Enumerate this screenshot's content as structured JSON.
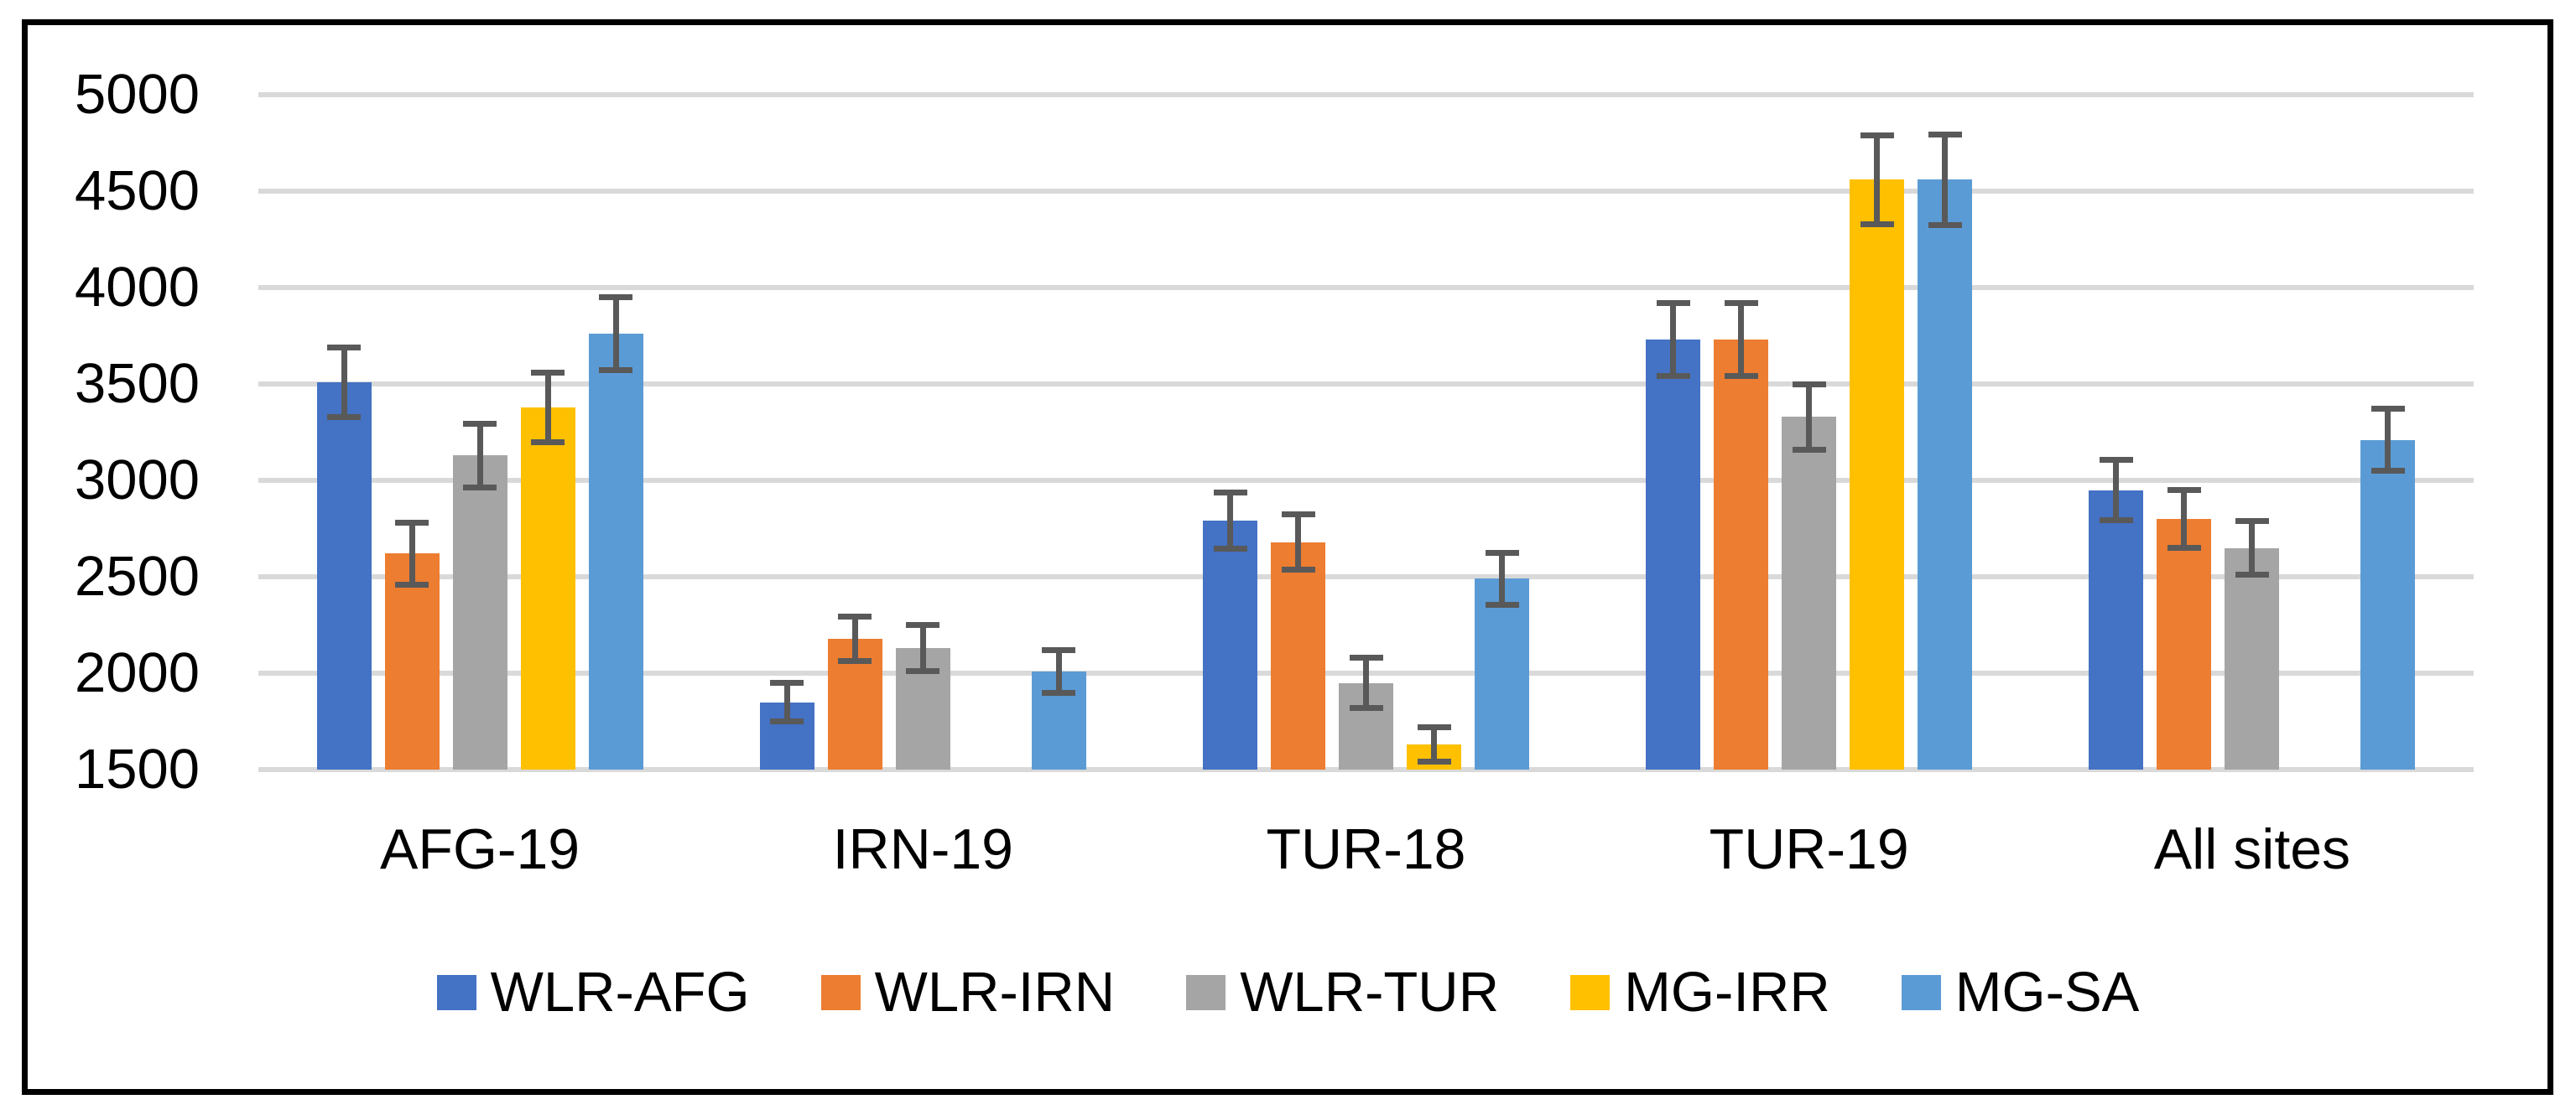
{
  "chart_data": {
    "type": "bar",
    "title": "",
    "xlabel": "",
    "ylabel": "",
    "categories": [
      "AFG-19",
      "IRN-19",
      "TUR-18",
      "TUR-19",
      "All sites"
    ],
    "series": [
      {
        "name": "WLR-AFG",
        "color": "#4472C4",
        "values": [
          3510,
          1850,
          2790,
          3730,
          2950
        ],
        "errors": [
          180,
          100,
          145,
          190,
          155
        ]
      },
      {
        "name": "WLR-IRN",
        "color": "#ED7D31",
        "values": [
          2620,
          2180,
          2680,
          3730,
          2800
        ],
        "errors": [
          160,
          115,
          145,
          190,
          150
        ]
      },
      {
        "name": "WLR-TUR",
        "color": "#A5A5A5",
        "values": [
          3130,
          2130,
          1950,
          3330,
          2650
        ],
        "errors": [
          165,
          120,
          130,
          170,
          140
        ]
      },
      {
        "name": "MG-IRR",
        "color": "#FFC000",
        "values": [
          3380,
          null,
          1630,
          4560,
          null
        ],
        "errors": [
          180,
          null,
          90,
          230,
          null
        ]
      },
      {
        "name": "MG-SA",
        "color": "#5B9BD5",
        "values": [
          3760,
          2010,
          2490,
          4560,
          3210
        ],
        "errors": [
          190,
          110,
          135,
          235,
          160
        ]
      }
    ],
    "y_axis": {
      "min": 1500,
      "max": 5000,
      "step": 500,
      "tick_labels": [
        "1500",
        "2000",
        "2500",
        "3000",
        "3500",
        "4000",
        "4500",
        "5000"
      ]
    },
    "legend_position": "bottom",
    "grid": true,
    "colors": {
      "gridline": "#D9D9D9",
      "error_bar": "#595959",
      "frame_border": "#000000",
      "background": "#FFFFFF",
      "text": "#000000"
    }
  }
}
